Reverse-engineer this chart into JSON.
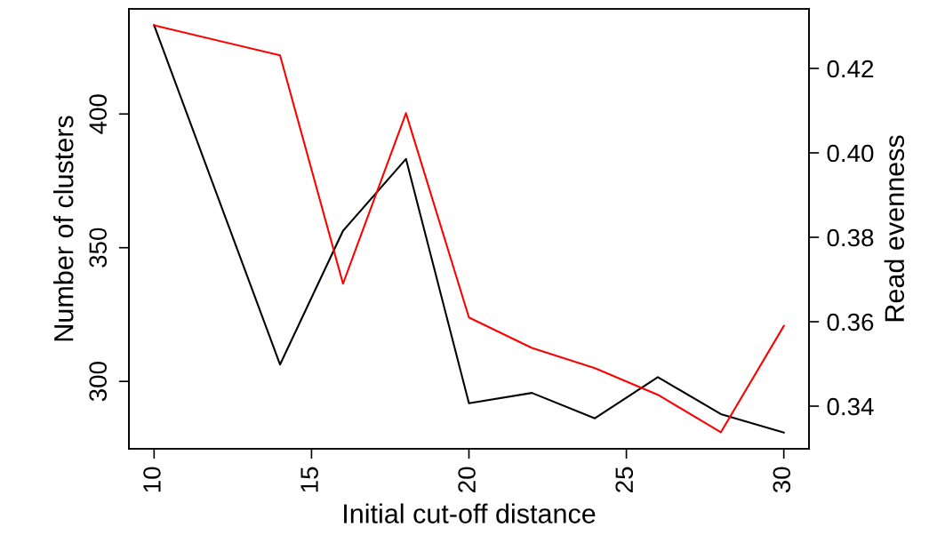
{
  "chart_data": {
    "type": "line",
    "xlabel": "Initial cut-off distance",
    "ylabel": "Number of clusters",
    "y2label": "Read evenness",
    "x": [
      10,
      14,
      16,
      18,
      20,
      22,
      24,
      26,
      28,
      30
    ],
    "series": [
      {
        "color": "#000000",
        "values": [
          433.2,
          306.3,
          356.3,
          383.2,
          291.8,
          295.7,
          286.2,
          301.6,
          287.8,
          280.9
        ]
      },
      {
        "color": "#ff0000",
        "axis": "y2",
        "values": [
          0.4302,
          0.4231,
          0.369,
          0.4094,
          0.361,
          0.3538,
          0.349,
          0.3427,
          0.3338,
          0.359
        ]
      }
    ],
    "xlim": [
      9.2,
      30.8
    ],
    "xticks": [
      10,
      15,
      20,
      25,
      30
    ],
    "ylim": [
      274.8,
      439.3
    ],
    "yticks": [
      300,
      350,
      400
    ],
    "y2lim": [
      0.3299,
      0.4341
    ],
    "y2ticks": [
      0.34,
      0.36,
      0.38,
      {
        "value": 0.4,
        "label": "0.40"
      },
      0.42
    ],
    "grid": false,
    "marker": "none",
    "line_style": "solid"
  }
}
